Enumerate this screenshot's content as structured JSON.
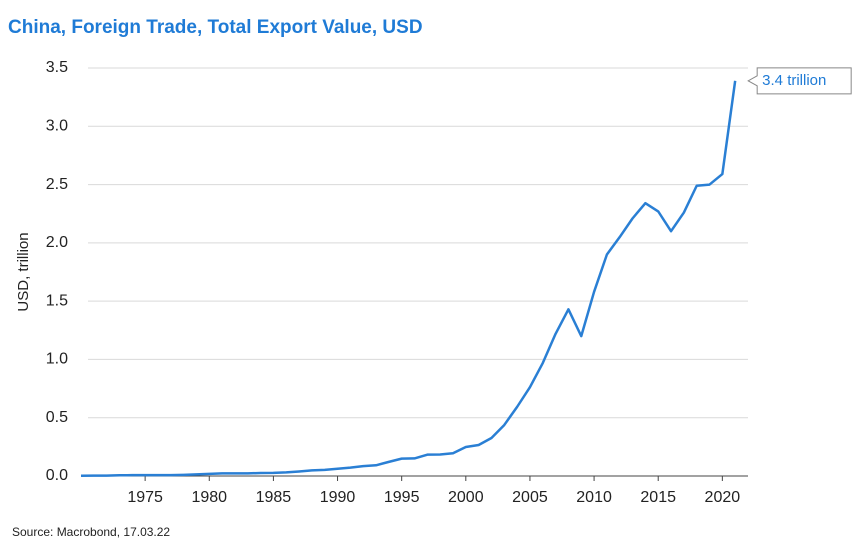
{
  "chart_data": {
    "type": "line",
    "title": "China, Foreign Trade, Total Export Value, USD",
    "y_label": "USD, trillion",
    "source": "Source: Macrobond, 17.03.22",
    "annotation": "3.4 trillion",
    "x": [
      1970,
      1971,
      1972,
      1973,
      1974,
      1975,
      1976,
      1977,
      1978,
      1979,
      1980,
      1981,
      1982,
      1983,
      1984,
      1985,
      1986,
      1987,
      1988,
      1989,
      1990,
      1991,
      1992,
      1993,
      1994,
      1995,
      1996,
      1997,
      1998,
      1999,
      2000,
      2001,
      2002,
      2003,
      2004,
      2005,
      2006,
      2007,
      2008,
      2009,
      2010,
      2011,
      2012,
      2013,
      2014,
      2015,
      2016,
      2017,
      2018,
      2019,
      2020,
      2021
    ],
    "series": [
      {
        "name": "Total Export Value",
        "color": "#2a7fd4",
        "values": [
          0.002,
          0.003,
          0.003,
          0.006,
          0.007,
          0.007,
          0.007,
          0.008,
          0.01,
          0.014,
          0.018,
          0.022,
          0.022,
          0.022,
          0.026,
          0.027,
          0.031,
          0.039,
          0.048,
          0.053,
          0.062,
          0.072,
          0.085,
          0.092,
          0.121,
          0.149,
          0.151,
          0.183,
          0.184,
          0.195,
          0.249,
          0.266,
          0.326,
          0.438,
          0.593,
          0.762,
          0.969,
          1.22,
          1.43,
          1.2,
          1.58,
          1.9,
          2.05,
          2.21,
          2.34,
          2.27,
          2.1,
          2.26,
          2.49,
          2.5,
          2.59,
          3.39
        ]
      }
    ],
    "xlim": [
      1970,
      2022
    ],
    "xticks": [
      1975,
      1980,
      1985,
      1990,
      1995,
      2000,
      2005,
      2010,
      2015,
      2020
    ],
    "ylim": [
      0,
      3.5
    ],
    "yticks": [
      {
        "value": 0,
        "label": "0.0"
      },
      0.5,
      {
        "value": 1,
        "label": "1.0"
      },
      1.5,
      {
        "value": 2,
        "label": "2.0"
      },
      2.5,
      {
        "value": 3,
        "label": "3.0"
      },
      3.5
    ],
    "grid": true
  }
}
